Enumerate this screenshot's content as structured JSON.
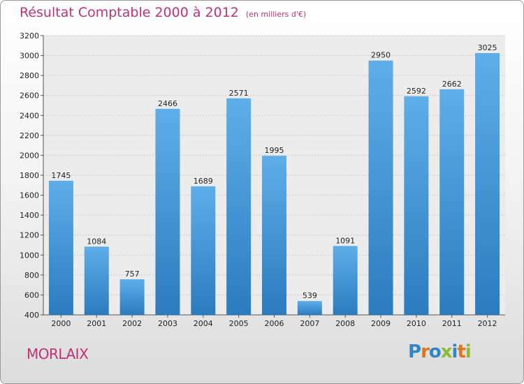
{
  "header": {
    "title": "Résultat Comptable 2000 à 2012",
    "unit": "(en milliers d'€)"
  },
  "footer": {
    "city": "MORLAIX",
    "logo": [
      "P",
      "r",
      "o",
      "x",
      "i",
      "t",
      "i"
    ]
  },
  "colors": {
    "title": "#c0307a",
    "bar_light": "#5eaee9",
    "bar_dark": "#2a7cbf",
    "logo": [
      "#2e86c8",
      "#e2731b",
      "#2e86c8",
      "#8abe2e",
      "#2e86c8",
      "#e2731b",
      "#8abe2e"
    ]
  },
  "chart_data": {
    "type": "bar",
    "title": "Résultat Comptable 2000 à 2012",
    "ylabel": "",
    "xlabel": "",
    "categories": [
      "2000",
      "2001",
      "2002",
      "2003",
      "2004",
      "2005",
      "2006",
      "2007",
      "2008",
      "2009",
      "2010",
      "2011",
      "2012"
    ],
    "values": [
      1745,
      1084,
      757,
      2466,
      1689,
      2571,
      1995,
      539,
      1091,
      2950,
      2592,
      2662,
      3025
    ],
    "yticks": [
      "400",
      "600",
      "800",
      "1000",
      "1200",
      "1400",
      "1600",
      "1800",
      "2000",
      "2200",
      "2400",
      "2600",
      "2800",
      "3000",
      "3200"
    ],
    "ylim": [
      400,
      3200
    ],
    "grid": true,
    "legend": "none"
  }
}
